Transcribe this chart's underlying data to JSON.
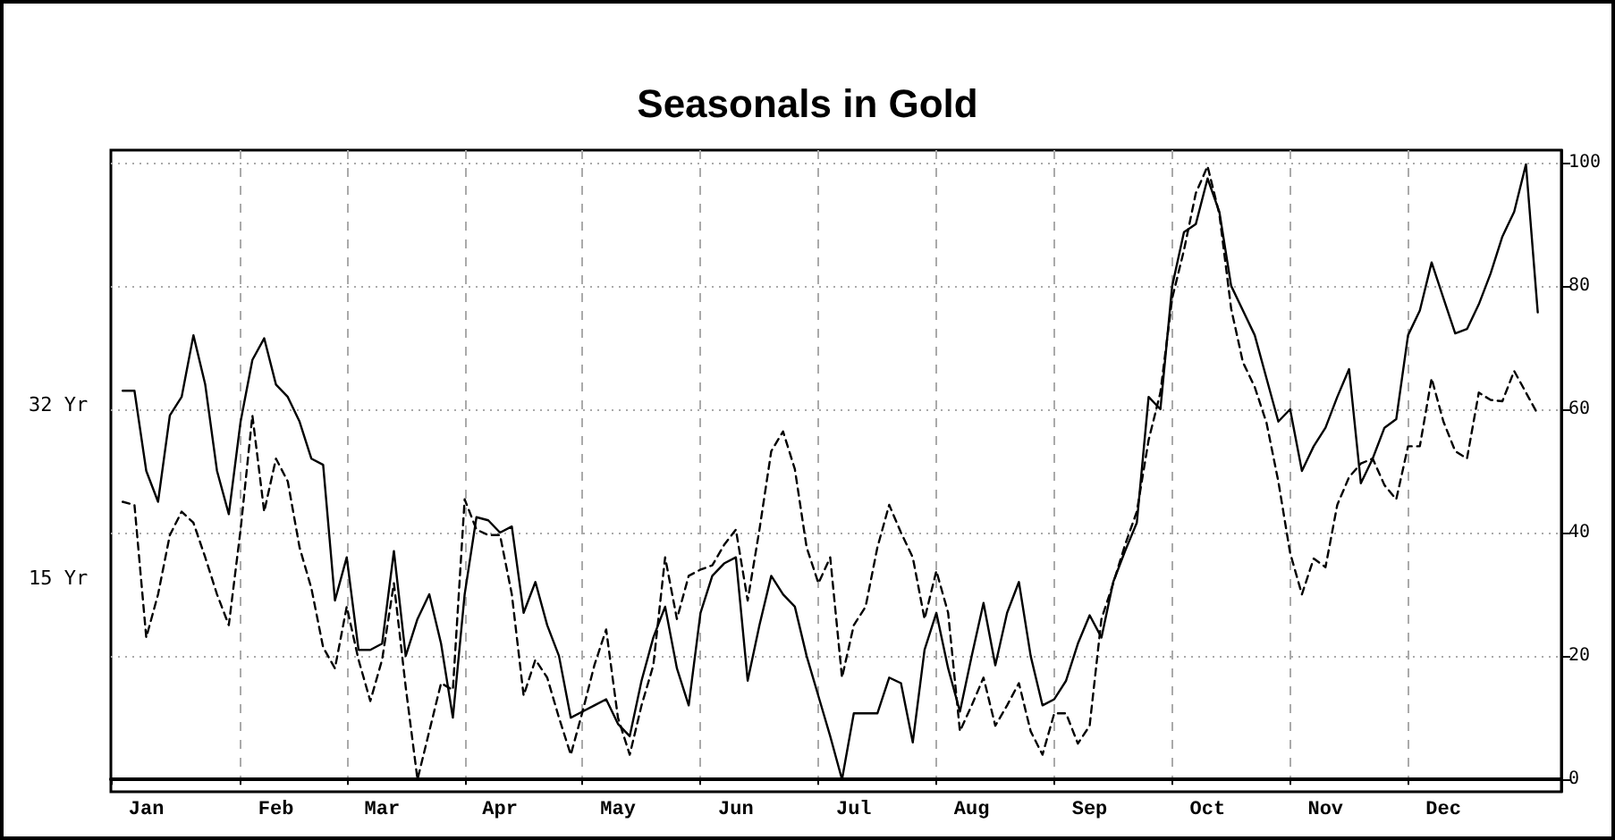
{
  "chart_data": {
    "type": "line",
    "title": "Seasonals in Gold",
    "categories": [
      null,
      null,
      null,
      "Jan",
      null,
      null,
      null,
      null,
      null,
      null,
      null,
      null,
      null,
      null,
      "Feb",
      null,
      null,
      null,
      null,
      null,
      null,
      null,
      null,
      "Mar",
      null,
      null,
      null,
      null,
      null,
      null,
      null,
      null,
      null,
      "Apr",
      null,
      null,
      null,
      null,
      null,
      null,
      null,
      null,
      null,
      "May",
      null,
      null,
      null,
      null,
      null,
      null,
      null,
      null,
      null,
      "Jun",
      null,
      null,
      null,
      null,
      null,
      null,
      null,
      null,
      null,
      "Jul",
      null,
      null,
      null,
      null,
      null,
      null,
      null,
      null,
      null,
      "Aug",
      null,
      null,
      null,
      null,
      null,
      null,
      null,
      null,
      null,
      "Sep",
      null,
      null,
      null,
      null,
      null,
      null,
      null,
      null,
      null,
      "Oct",
      null,
      null,
      null,
      null,
      null,
      null,
      null,
      null,
      null,
      "Nov",
      null,
      null,
      null,
      null,
      null,
      null,
      null,
      null,
      null,
      "Dec",
      null,
      null,
      null,
      null,
      null,
      null,
      null,
      null,
      null,
      null
    ],
    "ylim": [
      -2,
      102
    ],
    "yticks": [
      0,
      20,
      40,
      60,
      80,
      100
    ],
    "grid": true,
    "marker": "none",
    "series": [
      {
        "name": "32 Yr",
        "color": "#000000",
        "line_style": "solid",
        "values": [
          null,
          63,
          63,
          50,
          45,
          59,
          62,
          72,
          64,
          50,
          43,
          58,
          68,
          71.5,
          64,
          62,
          58,
          52,
          51,
          29,
          36,
          21,
          21,
          22,
          37,
          20,
          26,
          30,
          22,
          10,
          30,
          42.5,
          42,
          40,
          41,
          27,
          32,
          25,
          20,
          10,
          11,
          12,
          13,
          9,
          7,
          16,
          23,
          28,
          18,
          12,
          27,
          33,
          35,
          36,
          16,
          25,
          33,
          30,
          28,
          20,
          13.5,
          7,
          0,
          10.7,
          10.7,
          10.7,
          16.5,
          15.6,
          6,
          21,
          27,
          18,
          11,
          20,
          28.6,
          18.5,
          27,
          32,
          20,
          12,
          13,
          16,
          22,
          26.6,
          23,
          32,
          37,
          41.6,
          62,
          60,
          80,
          88.7,
          90,
          97.4,
          92,
          80,
          76,
          72,
          65,
          58,
          60,
          50,
          54,
          57,
          62,
          66.5,
          48,
          52,
          57,
          58.4,
          72,
          76,
          83.8,
          78,
          72.3,
          73,
          77,
          82,
          88,
          92,
          99.7,
          75.7,
          null,
          null
        ]
      },
      {
        "name": "15 Yr",
        "color": "#000000",
        "line_style": "dashed",
        "values": [
          null,
          45,
          44.5,
          23,
          30,
          39.6,
          43.4,
          41.6,
          36,
          30,
          25,
          40.5,
          59,
          43.4,
          52,
          48.3,
          37.6,
          31,
          21.4,
          18,
          28,
          19.4,
          12.7,
          19.4,
          31.8,
          15,
          0,
          7.8,
          15.6,
          14.5,
          45.4,
          40.5,
          39.6,
          39.6,
          30,
          13.6,
          19.4,
          16.5,
          10,
          4,
          11,
          18.5,
          24.3,
          10,
          4,
          12,
          18.5,
          36,
          26,
          33,
          34,
          34.7,
          38,
          40.5,
          29,
          40.5,
          53.2,
          56.4,
          50.3,
          37.6,
          31.8,
          36,
          16.5,
          25,
          28,
          37.6,
          44.5,
          40,
          36,
          26,
          33.8,
          27,
          7.8,
          12,
          16.5,
          8.7,
          12,
          15.6,
          7.8,
          4,
          10.7,
          10.7,
          5.8,
          8.7,
          26,
          31.8,
          38,
          43.4,
          55,
          62.7,
          78,
          85.8,
          95,
          99.4,
          91.6,
          76.3,
          67.6,
          63.6,
          57.8,
          48.3,
          36.7,
          30,
          35.8,
          34.4,
          44.5,
          49,
          51.2,
          52,
          47.7,
          45.4,
          54,
          54,
          65,
          58,
          53.2,
          52,
          62.7,
          61.5,
          61.3,
          66.2,
          62.7,
          59.2,
          null,
          null
        ]
      }
    ]
  }
}
